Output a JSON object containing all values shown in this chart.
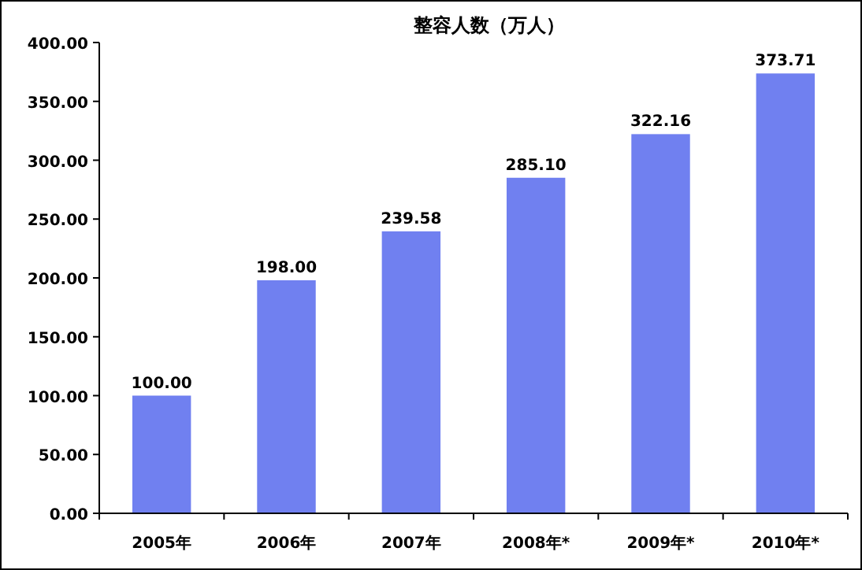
{
  "chart_data": {
    "type": "bar",
    "title": "整容人数（万人）",
    "categories": [
      "2005年",
      "2006年",
      "2007年",
      "2008年*",
      "2009年*",
      "2010年*"
    ],
    "values": [
      100.0,
      198.0,
      239.58,
      285.1,
      322.16,
      373.71
    ],
    "value_labels": [
      "100.00",
      "198.00",
      "239.58",
      "285.10",
      "322.16",
      "373.71"
    ],
    "color": "#7080f0",
    "ylim": [
      0,
      400
    ],
    "yticks": [
      {
        "value": 0,
        "label": "0.00"
      },
      {
        "value": 50,
        "label": "50.00"
      },
      {
        "value": 100,
        "label": "100.00"
      },
      {
        "value": 150,
        "label": "150.00"
      },
      {
        "value": 200,
        "label": "200.00"
      },
      {
        "value": 250,
        "label": "250.00"
      },
      {
        "value": 300,
        "label": "300.00"
      },
      {
        "value": 350,
        "label": "350.00"
      },
      {
        "value": 400,
        "label": "400.00"
      }
    ],
    "grid": false
  }
}
